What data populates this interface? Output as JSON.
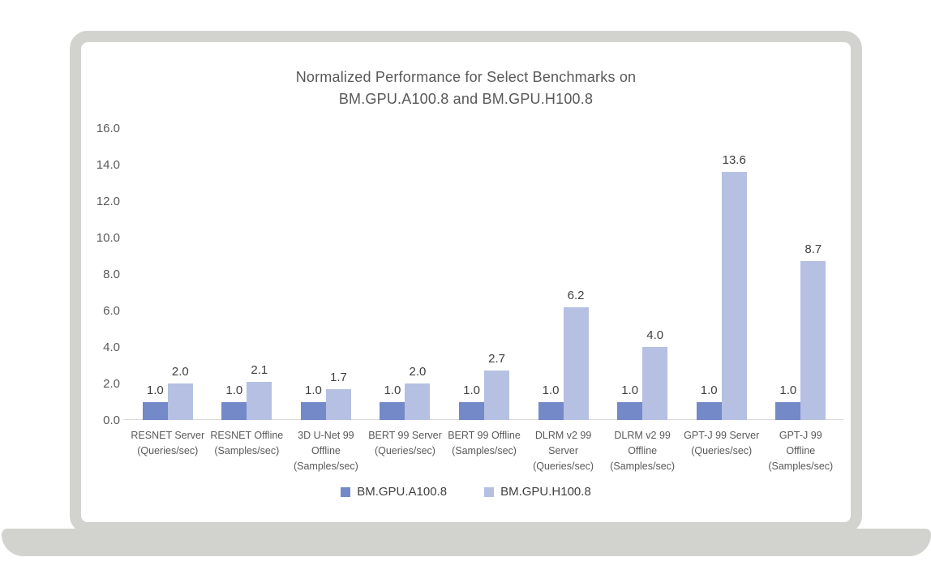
{
  "chart_data": {
    "type": "bar",
    "title": "Normalized Performance for Select Benchmarks on BM.GPU.A100.8 and BM.GPU.H100.8",
    "title_lines": [
      "Normalized Performance for Select Benchmarks on",
      "BM.GPU.A100.8 and BM.GPU.H100.8"
    ],
    "categories": [
      [
        "RESNET Server",
        "(Queries/sec)"
      ],
      [
        "RESNET Offline",
        "(Samples/sec)"
      ],
      [
        "3D U-Net 99",
        "Offline",
        "(Samples/sec)"
      ],
      [
        "BERT 99 Server",
        "(Queries/sec)"
      ],
      [
        "BERT 99 Offline",
        "(Samples/sec)"
      ],
      [
        "DLRM v2 99",
        "Server",
        "(Queries/sec)"
      ],
      [
        "DLRM v2 99",
        "Offline",
        "(Samples/sec)"
      ],
      [
        "GPT-J 99 Server",
        "(Queries/sec)"
      ],
      [
        "GPT-J 99",
        "Offline",
        "(Samples/sec)"
      ]
    ],
    "series": [
      {
        "name": "BM.GPU.A100.8",
        "color": "#7389C8",
        "values": [
          1.0,
          1.0,
          1.0,
          1.0,
          1.0,
          1.0,
          1.0,
          1.0,
          1.0
        ]
      },
      {
        "name": "BM.GPU.H100.8",
        "color": "#B5C0E2",
        "values": [
          2.0,
          2.1,
          1.7,
          2.0,
          2.7,
          6.2,
          4.0,
          13.6,
          8.7
        ]
      }
    ],
    "yticks": [
      "0.0",
      "2.0",
      "4.0",
      "6.0",
      "8.0",
      "10.0",
      "12.0",
      "14.0",
      "16.0"
    ],
    "ylim": [
      0,
      16
    ],
    "ytick_step": 2,
    "xlabel": "",
    "ylabel": "",
    "grid": false,
    "legend_position": "bottom",
    "data_label_decimals": 1
  },
  "colors": {
    "series_a100": "#7389C8",
    "series_h100": "#B5C0E2",
    "card_border": "#d2d2cf",
    "axis_text": "#595959",
    "label_text": "#3f3f3f",
    "baseline": "#d9d9d9"
  }
}
